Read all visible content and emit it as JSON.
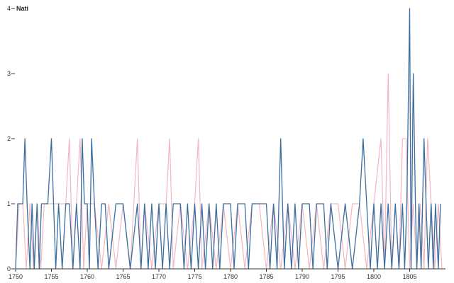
{
  "chart_data": {
    "type": "line",
    "title": "",
    "xlabel": "",
    "ylabel": "",
    "xlim": [
      1750,
      1810
    ],
    "ylim": [
      0,
      4
    ],
    "grid": false,
    "x_ticks": [
      1750,
      1755,
      1760,
      1765,
      1770,
      1775,
      1780,
      1785,
      1790,
      1795,
      1800,
      1805
    ],
    "y_ticks": [
      0,
      1,
      2,
      3,
      4
    ],
    "x_tick_labels": [
      "1750",
      "1755",
      "1760",
      "1765",
      "1770",
      "1775",
      "1780",
      "1785",
      "1790",
      "1795",
      "1800",
      "1805"
    ],
    "y_tick_labels": [
      "0",
      "1",
      "2",
      "3",
      "4"
    ],
    "y_top_series_label": "Nati",
    "series": [
      {
        "name": "Nati",
        "color": "#f4b6c2",
        "x": [
          1750,
          1750.5,
          1751,
          1751.5,
          1752,
          1752.5,
          1753,
          1753.5,
          1754,
          1755,
          1756,
          1757,
          1757.5,
          1758,
          1758.5,
          1759,
          1759.5,
          1760,
          1761,
          1762,
          1763,
          1764,
          1765,
          1766,
          1767,
          1767.5,
          1768,
          1769,
          1770,
          1771,
          1771.5,
          1772,
          1773,
          1774,
          1775,
          1775.5,
          1776,
          1777,
          1778,
          1779,
          1780,
          1781,
          1782,
          1783,
          1784,
          1785,
          1786,
          1787,
          1788,
          1789,
          1790,
          1791,
          1792,
          1793,
          1794,
          1795,
          1796,
          1797,
          1798,
          1799,
          1800,
          1801,
          1801.5,
          1802,
          1802.5,
          1803,
          1803.5,
          1804,
          1804.5,
          1805,
          1805.5,
          1806,
          1806.5,
          1807,
          1807.5,
          1808,
          1808.5,
          1809,
          1809.5
        ],
        "y": [
          0,
          1,
          1,
          0,
          1,
          0,
          1,
          0,
          1,
          1,
          1,
          1,
          2,
          0,
          1,
          2,
          0,
          1,
          1,
          0,
          1,
          0,
          1,
          0,
          2,
          0,
          1,
          0,
          1,
          1,
          2,
          0,
          1,
          0,
          1,
          2,
          0,
          1,
          0,
          1,
          0,
          1,
          0,
          1,
          1,
          0,
          1,
          0,
          1,
          0,
          1,
          0,
          1,
          0,
          1,
          1,
          0,
          1,
          1,
          0,
          1,
          2,
          0,
          3,
          0,
          1,
          0,
          2,
          2,
          0,
          1,
          0,
          1,
          0,
          2,
          1,
          0,
          1,
          0
        ]
      },
      {
        "name": "",
        "color": "#3a6fa0",
        "x": [
          1750,
          1750.3,
          1750.7,
          1751,
          1751.3,
          1751.6,
          1752,
          1752.3,
          1752.6,
          1753,
          1753.3,
          1753.6,
          1754,
          1754.5,
          1755,
          1755.3,
          1755.6,
          1756,
          1756.5,
          1757,
          1757.5,
          1758,
          1758.5,
          1759,
          1759.3,
          1759.6,
          1760,
          1760.3,
          1760.6,
          1761,
          1761.5,
          1762,
          1762.5,
          1763,
          1764,
          1765,
          1766,
          1767,
          1767.5,
          1768,
          1768.5,
          1769,
          1769.5,
          1770,
          1770.5,
          1771,
          1771.5,
          1772,
          1773,
          1773.5,
          1774,
          1774.5,
          1775,
          1775.5,
          1776,
          1776.5,
          1777,
          1777.5,
          1778,
          1778.5,
          1779,
          1780,
          1780.5,
          1781,
          1782,
          1782.5,
          1783,
          1784,
          1785,
          1785.5,
          1786,
          1786.5,
          1787,
          1787.5,
          1788,
          1788.5,
          1789,
          1789.5,
          1790,
          1791,
          1791.5,
          1792,
          1793,
          1793.5,
          1794,
          1795,
          1796,
          1797,
          1798,
          1798.5,
          1799,
          1799.5,
          1800,
          1800.5,
          1801,
          1801.5,
          1802,
          1802.5,
          1803,
          1803.5,
          1804,
          1804.3,
          1804.6,
          1805,
          1805.2,
          1805.5,
          1805.8,
          1806,
          1806.3,
          1806.6,
          1807,
          1807.3,
          1807.6,
          1808,
          1808.3,
          1808.6,
          1809,
          1809.3
        ],
        "y": [
          0,
          1,
          1,
          1,
          2,
          1,
          0,
          1,
          0,
          1,
          0,
          1,
          1,
          1,
          2,
          1,
          0,
          1,
          0,
          1,
          1,
          0,
          1,
          0,
          2,
          1,
          1,
          0,
          2,
          1,
          0,
          1,
          1,
          0,
          1,
          1,
          0,
          1,
          0,
          1,
          0,
          1,
          0,
          1,
          0,
          1,
          0,
          1,
          1,
          0,
          1,
          0,
          1,
          0,
          1,
          0,
          1,
          0,
          1,
          0,
          1,
          1,
          0,
          1,
          1,
          0,
          1,
          1,
          1,
          0,
          1,
          0,
          2,
          0,
          1,
          0,
          1,
          0,
          1,
          1,
          0,
          1,
          1,
          0,
          1,
          0,
          1,
          0,
          1,
          2,
          1,
          0,
          1,
          0,
          1,
          0,
          1,
          0,
          1,
          0,
          1,
          0,
          1,
          4,
          0,
          3,
          1,
          0,
          1,
          0,
          2,
          1,
          0,
          1,
          0,
          1,
          0,
          1
        ]
      }
    ]
  }
}
